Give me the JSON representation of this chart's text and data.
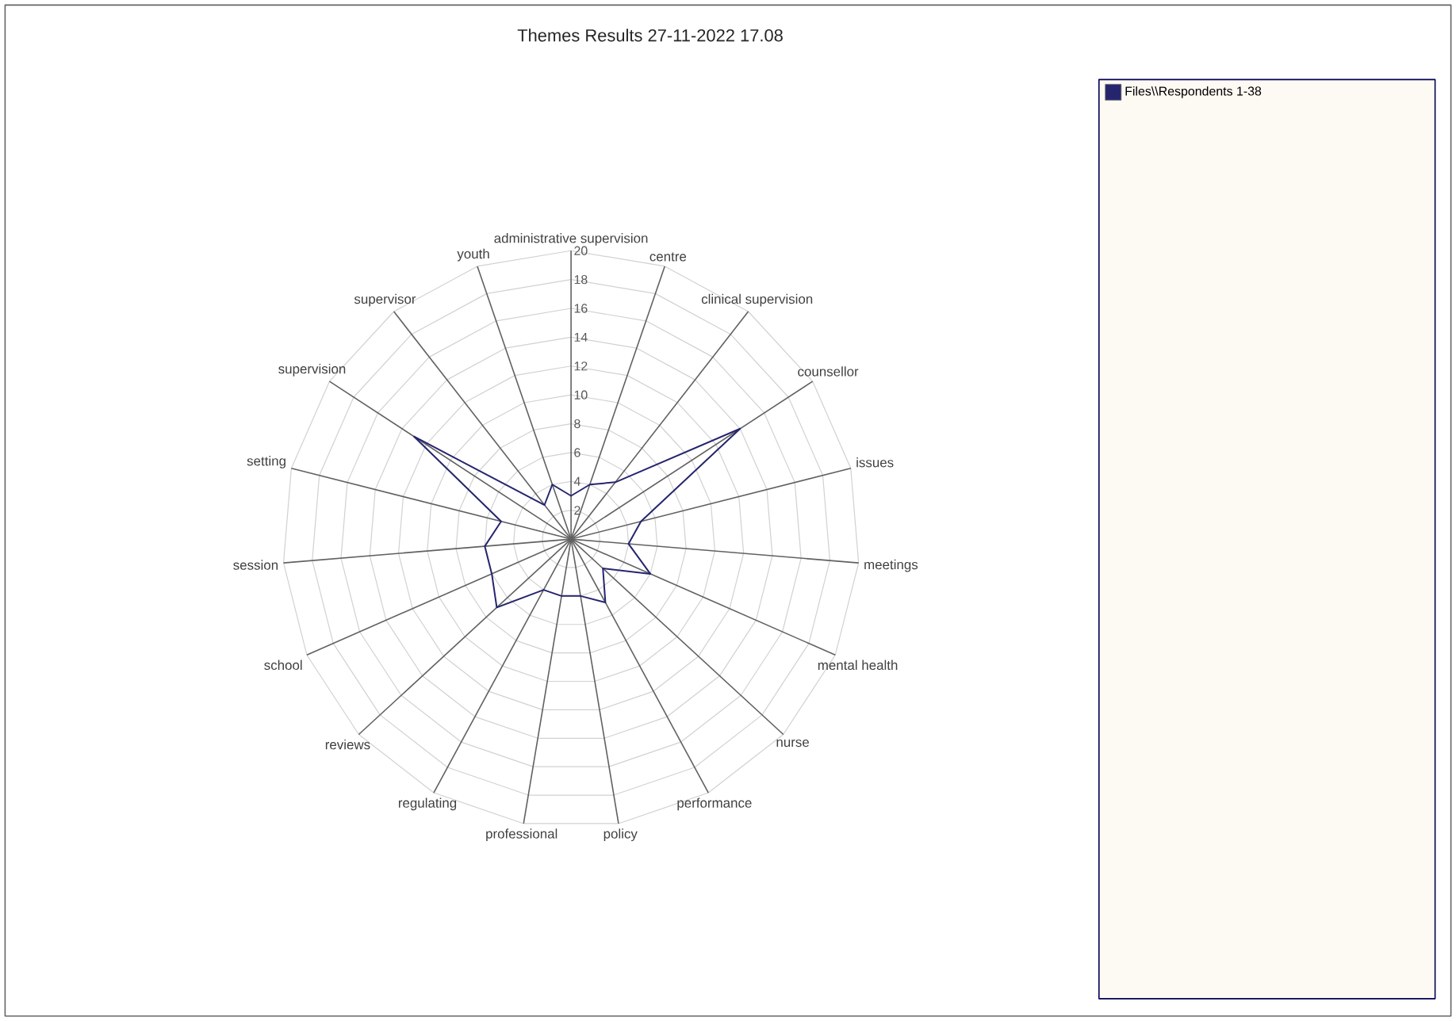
{
  "chart_data": {
    "type": "radar",
    "title": "Themes Results 27-11-2022 17.08",
    "categories": [
      "administrative supervision",
      "centre",
      "clinical supervision",
      "counsellor",
      "issues",
      "meetings",
      "mental health",
      "nurse",
      "performance",
      "policy",
      "professional",
      "regulating",
      "reviews",
      "school",
      "session",
      "setting",
      "supervision",
      "supervisor",
      "youth"
    ],
    "series": [
      {
        "name": "Files\\\\Respondents 1-38",
        "color": "#25256e",
        "values": [
          3,
          4,
          5,
          14,
          5,
          4,
          6,
          3,
          5,
          4,
          4,
          4,
          7,
          6,
          6,
          5,
          13,
          3,
          4
        ]
      }
    ],
    "ylim": [
      0,
      20
    ],
    "yticks": [
      2,
      4,
      6,
      8,
      10,
      12,
      14,
      16,
      18,
      20
    ],
    "grid": true,
    "legend": "right"
  }
}
